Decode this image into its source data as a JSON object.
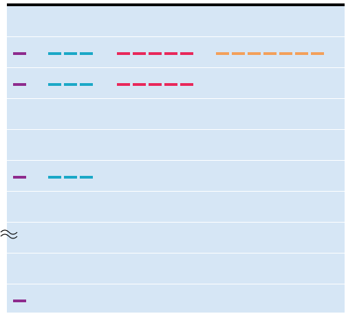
{
  "colors": {
    "background": "#d6e6f5",
    "separator": "#ffffff",
    "top_rule": "#000000",
    "purple": "#8e2b8d",
    "cyan": "#1ba8c7",
    "crimson": "#e8285a",
    "orange": "#f3a05a"
  },
  "rows": [
    {
      "segments": []
    },
    {
      "segments": [
        {
          "color": "purple",
          "count": 1
        },
        {
          "color": "cyan",
          "count": 3
        },
        {
          "color": "crimson",
          "count": 5
        },
        {
          "color": "orange",
          "count": 7
        }
      ]
    },
    {
      "segments": [
        {
          "color": "purple",
          "count": 1
        },
        {
          "color": "cyan",
          "count": 3
        },
        {
          "color": "crimson",
          "count": 5
        }
      ]
    },
    {
      "segments": []
    },
    {
      "segments": []
    },
    {
      "segments": [
        {
          "color": "purple",
          "count": 1
        },
        {
          "color": "cyan",
          "count": 3
        }
      ]
    },
    {
      "segments": []
    },
    {
      "segments": [],
      "break_marker": "wavy-break-icon"
    },
    {
      "segments": []
    },
    {
      "segments": [
        {
          "color": "purple",
          "count": 1
        }
      ]
    }
  ]
}
